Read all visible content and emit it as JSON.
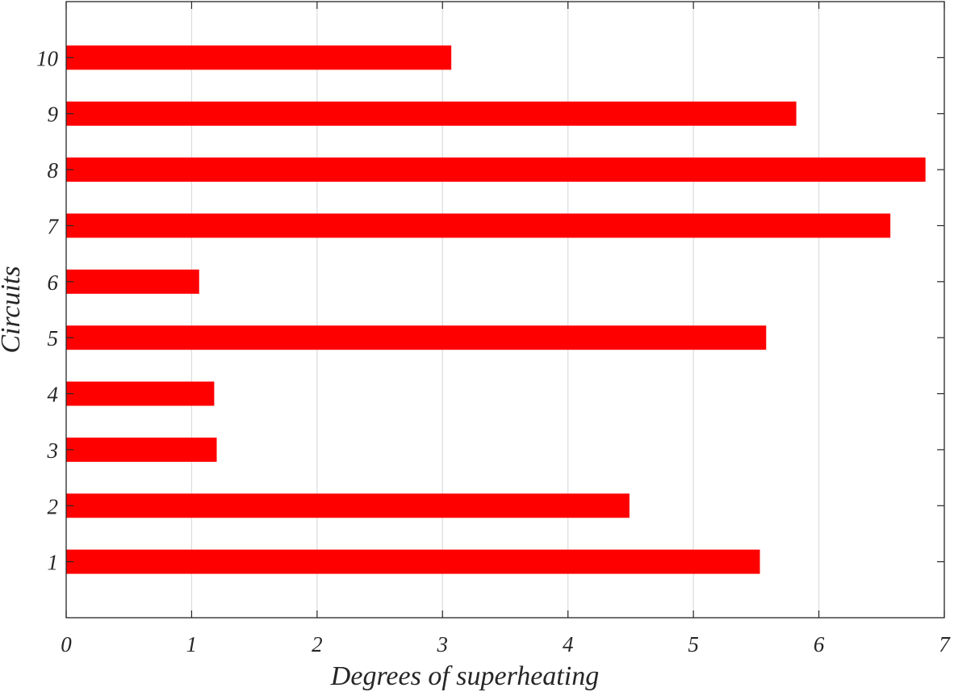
{
  "chart_data": {
    "type": "bar",
    "orientation": "horizontal",
    "title": "",
    "xlabel": "Degrees of superheating",
    "ylabel": "Circuits",
    "xlim": [
      0,
      7
    ],
    "ylim": [
      0,
      11
    ],
    "xticks": [
      "0",
      "1",
      "2",
      "3",
      "4",
      "5",
      "6",
      "7"
    ],
    "categories": [
      "1",
      "2",
      "3",
      "4",
      "5",
      "6",
      "7",
      "8",
      "9",
      "10"
    ],
    "values": [
      5.53,
      4.49,
      1.2,
      1.18,
      5.58,
      1.06,
      6.57,
      6.85,
      5.82,
      3.07
    ],
    "bar_color": "#ff0000",
    "grid": "vertical",
    "legend": "none"
  }
}
